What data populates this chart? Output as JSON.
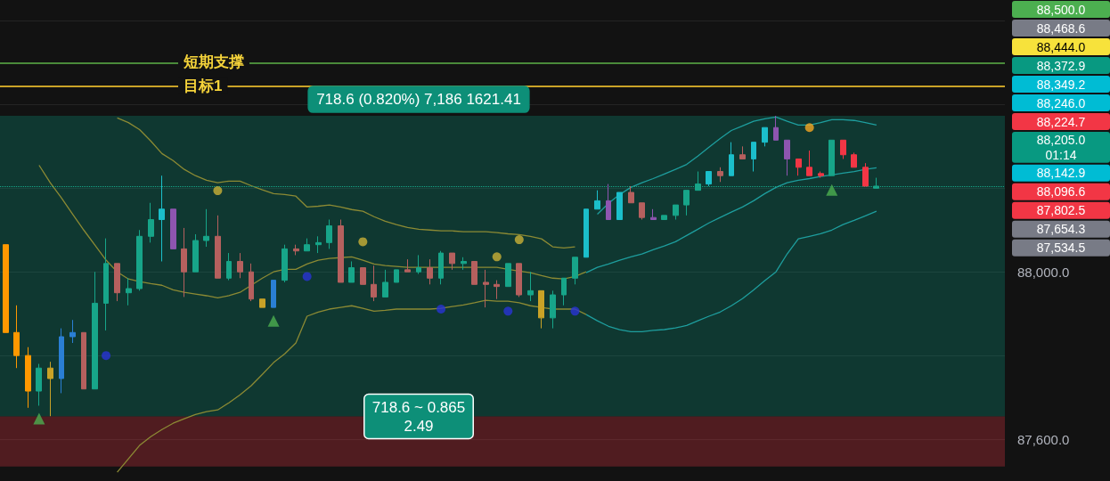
{
  "chart_data": {
    "type": "candlestick",
    "categories": [
      null,
      null,
      null,
      null,
      null,
      null,
      null,
      null,
      null,
      null,
      null,
      null,
      null,
      null,
      null,
      null,
      null,
      null,
      null,
      null,
      null,
      null,
      null,
      null,
      null,
      null,
      null,
      null,
      null,
      null,
      null,
      null,
      null,
      null,
      null,
      null,
      null,
      null,
      null,
      null,
      null,
      null,
      null,
      null,
      null,
      null,
      null,
      null,
      null,
      null,
      null,
      null,
      null,
      null,
      null,
      null,
      null,
      null,
      null,
      null,
      null,
      null,
      null,
      null,
      null,
      null,
      null,
      null,
      null,
      null,
      null,
      null,
      null,
      null,
      null,
      null,
      null,
      null,
      null
    ],
    "ohlc": [
      [
        88065,
        88065,
        87855,
        87855
      ],
      [
        87855,
        87920,
        87770,
        87800
      ],
      [
        87800,
        87820,
        87675,
        87715
      ],
      [
        87715,
        87780,
        87680,
        87770
      ],
      [
        87770,
        87785,
        87655,
        87745
      ],
      [
        87745,
        87865,
        87710,
        87845
      ],
      [
        87845,
        87885,
        87830,
        87855
      ],
      [
        87855,
        87855,
        87720,
        87720
      ],
      [
        87720,
        88000,
        87720,
        87925
      ],
      [
        87925,
        88080,
        87860,
        88020
      ],
      [
        88020,
        88020,
        87930,
        87950
      ],
      [
        87950,
        87985,
        87920,
        87960
      ],
      [
        87960,
        88100,
        87955,
        88085
      ],
      [
        88085,
        88165,
        88070,
        88125
      ],
      [
        88125,
        88230,
        88025,
        88150
      ],
      [
        88150,
        88150,
        88055,
        88055
      ],
      [
        88055,
        88105,
        87940,
        88000
      ],
      [
        88000,
        88090,
        88000,
        88075
      ],
      [
        88075,
        88150,
        88060,
        88085
      ],
      [
        88085,
        88135,
        87985,
        87985
      ],
      [
        87985,
        88045,
        87980,
        88025
      ],
      [
        88025,
        88045,
        87985,
        88000
      ],
      [
        88000,
        88020,
        87930,
        87935
      ],
      [
        87935,
        87935,
        87915,
        87915
      ],
      [
        87915,
        87980,
        87915,
        87980
      ],
      [
        87980,
        88065,
        87975,
        88055
      ],
      [
        88055,
        88065,
        88040,
        88050
      ],
      [
        88050,
        88080,
        88050,
        88065
      ],
      [
        88065,
        88085,
        88045,
        88070
      ],
      [
        88070,
        88125,
        88055,
        88110
      ],
      [
        88110,
        88125,
        87975,
        87975
      ],
      [
        87975,
        88025,
        87975,
        88010
      ],
      [
        88010,
        88010,
        87970,
        87970
      ],
      [
        87970,
        88015,
        87930,
        87940
      ],
      [
        87940,
        88005,
        87940,
        87975
      ],
      [
        87975,
        88005,
        87975,
        88005
      ],
      [
        88005,
        88030,
        88000,
        88000
      ],
      [
        88000,
        88040,
        87995,
        88010
      ],
      [
        88010,
        88030,
        87970,
        87985
      ],
      [
        87985,
        88050,
        87970,
        88045
      ],
      [
        88045,
        88045,
        88005,
        88020
      ],
      [
        88020,
        88035,
        88005,
        88025
      ],
      [
        88025,
        88025,
        87970,
        87970
      ],
      [
        87975,
        88005,
        87915,
        87970
      ],
      [
        87970,
        87980,
        87935,
        87965
      ],
      [
        87965,
        88020,
        87965,
        88020
      ],
      [
        88020,
        88020,
        87940,
        87945
      ],
      [
        87945,
        88000,
        87930,
        87955
      ],
      [
        87955,
        87955,
        87865,
        87890
      ],
      [
        87890,
        87955,
        87865,
        87945
      ],
      [
        87945,
        87985,
        87920,
        87985
      ],
      [
        87985,
        88035,
        87970,
        88035
      ],
      [
        88035,
        88150,
        88035,
        88150
      ],
      [
        88150,
        88195,
        88150,
        88170
      ],
      [
        88170,
        88210,
        88125,
        88125
      ],
      [
        88125,
        88190,
        88125,
        88190
      ],
      [
        88190,
        88205,
        88165,
        88165
      ],
      [
        88165,
        88165,
        88125,
        88130
      ],
      [
        88130,
        88150,
        88125,
        88125
      ],
      [
        88125,
        88135,
        88125,
        88135
      ],
      [
        88135,
        88160,
        88125,
        88160
      ],
      [
        88160,
        88195,
        88135,
        88195
      ],
      [
        88195,
        88240,
        88195,
        88210
      ],
      [
        88210,
        88240,
        88205,
        88240
      ],
      [
        88240,
        88250,
        88215,
        88230
      ],
      [
        88230,
        88310,
        88230,
        88280
      ],
      [
        88280,
        88300,
        88270,
        88270
      ],
      [
        88270,
        88310,
        88240,
        88310
      ],
      [
        88310,
        88345,
        88300,
        88345
      ],
      [
        88345,
        88373,
        88315,
        88315
      ],
      [
        88315,
        88315,
        88230,
        88270
      ],
      [
        88270,
        88270,
        88230,
        88250
      ],
      [
        88250,
        88290,
        88230,
        88230
      ],
      [
        88235,
        88240,
        88225,
        88230
      ],
      [
        88230,
        88315,
        88230,
        88315
      ],
      [
        88315,
        88315,
        88270,
        88280
      ],
      [
        88280,
        88285,
        88250,
        88250
      ],
      [
        88250,
        88260,
        88205,
        88205
      ],
      [
        88200,
        88225,
        88200,
        88205
      ]
    ],
    "colors": [
      "#ff9800",
      "#ff9800",
      "#ff9800",
      "#17a589",
      "#c9a227",
      "#2a7fd4",
      "#2a7fd4",
      "#b5605e",
      "#17a589",
      "#17a589",
      "#b5605e",
      "#17a589",
      "#17a589",
      "#17a589",
      "#1bbfcb",
      "#8e55b0",
      "#b5605e",
      "#17a589",
      "#17a589",
      "#b5605e",
      "#17a589",
      "#b5605e",
      "#b5605e",
      "#c9a227",
      "#2a7fd4",
      "#17a589",
      "#b5605e",
      "#17a589",
      "#17a589",
      "#17a589",
      "#b5605e",
      "#17a589",
      "#b5605e",
      "#b5605e",
      "#17a589",
      "#17a589",
      "#b5605e",
      "#17a589",
      "#b5605e",
      "#17a589",
      "#b5605e",
      "#17a589",
      "#b5605e",
      "#b5605e",
      "#b5605e",
      "#17a589",
      "#b5605e",
      "#17a589",
      "#c9a227",
      "#17a589",
      "#17a589",
      "#17a589",
      "#1bbfcb",
      "#1bbfcb",
      "#8e55b0",
      "#1bbfcb",
      "#b5605e",
      "#b5605e",
      "#8e55b0",
      "#17a589",
      "#17a589",
      "#17a589",
      "#17a589",
      "#1bbfcb",
      "#b5605e",
      "#1bbfcb",
      "#b5605e",
      "#1bbfcb",
      "#1bbfcb",
      "#8e55b0",
      "#8e55b0",
      "#f23645",
      "#f23645",
      "#f23645",
      "#17a589",
      "#f23645",
      "#f23645",
      "#f23645",
      "#17a589"
    ],
    "series": [
      {
        "type": "line",
        "color": "#8c8a34",
        "values": [
          null,
          null,
          null,
          null,
          null,
          null,
          null,
          null,
          null,
          null,
          88368,
          88357,
          88340,
          88313,
          88283,
          88266,
          88245,
          88230,
          88219,
          88213,
          88217,
          88217,
          88206,
          88196,
          88187,
          88185,
          88181,
          88155,
          88157,
          88160,
          88155,
          88149,
          88145,
          88132,
          88121,
          88113,
          88106,
          88102,
          88100,
          88098,
          88098,
          88096,
          88096,
          88096,
          88094,
          88091,
          88089,
          88085,
          88079,
          88060,
          88057,
          88060,
          null,
          null,
          null,
          null,
          null,
          null,
          null,
          null,
          null,
          null,
          null,
          null,
          null,
          null,
          null,
          null,
          null,
          null,
          null,
          null,
          null,
          null,
          null,
          null,
          null,
          null,
          null
        ]
      },
      {
        "type": "line",
        "color": "#8c8a34",
        "values": [
          null,
          null,
          null,
          88255,
          88213,
          88177,
          88138,
          88100,
          88064,
          88028,
          88000,
          87983,
          87977,
          87972,
          87968,
          87957,
          87951,
          87947,
          87943,
          87938,
          87943,
          87951,
          87968,
          87985,
          88000,
          88006,
          88006,
          88019,
          88028,
          88032,
          88034,
          88036,
          88028,
          88019,
          88015,
          88013,
          88011,
          88011,
          88011,
          88011,
          88011,
          88011,
          88011,
          88011,
          88011,
          88006,
          88002,
          87998,
          87991,
          87985,
          87983,
          87989,
          88000,
          null,
          null,
          null,
          null,
          null,
          null,
          null,
          null,
          null,
          null,
          null,
          null,
          null,
          null,
          null,
          null,
          null,
          null,
          null,
          null,
          null,
          null,
          null,
          null,
          null,
          null
        ]
      },
      {
        "type": "line",
        "color": "#8c8a34",
        "values": [
          null,
          null,
          null,
          null,
          null,
          null,
          null,
          null,
          null,
          null,
          87521,
          87553,
          87585,
          87606,
          87623,
          87638,
          87649,
          87659,
          87666,
          87670,
          87687,
          87706,
          87728,
          87755,
          87783,
          87804,
          87830,
          87894,
          87904,
          87911,
          87915,
          87919,
          87913,
          87906,
          87908,
          87911,
          87911,
          87911,
          87911,
          87913,
          87917,
          87921,
          87926,
          87932,
          87930,
          87930,
          87926,
          87919,
          87915,
          87911,
          87911,
          87911,
          87898,
          null,
          null,
          null,
          null,
          null,
          null,
          null,
          null,
          null,
          null,
          null,
          null,
          null,
          null,
          null,
          null,
          null,
          null,
          null,
          null,
          null,
          null,
          null,
          null,
          null,
          null
        ]
      },
      {
        "type": "line",
        "color": "#1e9e9e",
        "values": [
          null,
          null,
          null,
          null,
          null,
          null,
          null,
          null,
          null,
          null,
          null,
          null,
          null,
          null,
          null,
          null,
          null,
          null,
          null,
          null,
          null,
          null,
          null,
          null,
          null,
          null,
          null,
          null,
          null,
          null,
          null,
          null,
          null,
          null,
          null,
          null,
          null,
          null,
          null,
          null,
          null,
          null,
          null,
          null,
          null,
          null,
          null,
          null,
          null,
          null,
          null,
          null,
          null,
          88138,
          88164,
          88185,
          88202,
          88213,
          88223,
          88234,
          88245,
          88257,
          88277,
          88298,
          88319,
          88338,
          88349,
          88360,
          88366,
          88370,
          88360,
          88351,
          88351,
          88357,
          88364,
          88364,
          88362,
          88357,
          88351
        ]
      },
      {
        "type": "line",
        "color": "#1e9e9e",
        "values": [
          null,
          null,
          null,
          null,
          null,
          null,
          null,
          null,
          null,
          null,
          null,
          null,
          null,
          null,
          null,
          null,
          null,
          null,
          null,
          null,
          null,
          null,
          null,
          null,
          null,
          null,
          null,
          null,
          null,
          null,
          null,
          null,
          null,
          null,
          null,
          null,
          null,
          null,
          null,
          null,
          null,
          null,
          null,
          null,
          null,
          null,
          null,
          null,
          null,
          null,
          null,
          null,
          87998,
          88011,
          88019,
          88028,
          88036,
          88043,
          88053,
          88062,
          88072,
          88087,
          88102,
          88117,
          88130,
          88143,
          88155,
          88170,
          88187,
          88202,
          88213,
          88219,
          88223,
          88228,
          88232,
          88236,
          88240,
          88245,
          88249
        ]
      },
      {
        "type": "line",
        "color": "#1e9e9e",
        "values": [
          null,
          null,
          null,
          null,
          null,
          null,
          null,
          null,
          null,
          null,
          null,
          null,
          null,
          null,
          null,
          null,
          null,
          null,
          null,
          null,
          null,
          null,
          null,
          null,
          null,
          null,
          null,
          null,
          null,
          null,
          null,
          null,
          null,
          null,
          null,
          null,
          null,
          null,
          null,
          null,
          null,
          null,
          null,
          null,
          null,
          null,
          null,
          null,
          null,
          null,
          null,
          null,
          87898,
          87883,
          87870,
          87862,
          87857,
          87857,
          87860,
          87862,
          87866,
          87872,
          87883,
          87894,
          87904,
          87919,
          87936,
          87957,
          87979,
          88000,
          88043,
          88079,
          88085,
          88091,
          88100,
          88113,
          88123,
          88134,
          88145
        ]
      },
      {
        "type": "scatter",
        "marker": "circle",
        "color": "#c9b037",
        "values": [
          null,
          null,
          null,
          null,
          null,
          null,
          null,
          null,
          null,
          null,
          null,
          null,
          null,
          null,
          null,
          null,
          null,
          null,
          null,
          88194,
          null,
          null,
          null,
          null,
          null,
          null,
          null,
          null,
          null,
          null,
          null,
          null,
          88072,
          null,
          null,
          null,
          null,
          null,
          null,
          null,
          null,
          null,
          null,
          null,
          88036,
          null,
          88077,
          null,
          null,
          null,
          null,
          null,
          null,
          null,
          null,
          null,
          null,
          null,
          null,
          null,
          null,
          null,
          null,
          null,
          null,
          null,
          null,
          null,
          null,
          null,
          null,
          null,
          null,
          null,
          null,
          null,
          null,
          null,
          null
        ]
      },
      {
        "type": "scatter",
        "marker": "circle",
        "color": "#2833d6",
        "values": [
          null,
          null,
          null,
          null,
          null,
          null,
          null,
          null,
          null,
          87800,
          null,
          null,
          null,
          null,
          null,
          null,
          null,
          null,
          null,
          null,
          null,
          null,
          null,
          null,
          null,
          null,
          null,
          87989,
          null,
          null,
          null,
          null,
          null,
          null,
          null,
          null,
          null,
          null,
          null,
          87911,
          null,
          null,
          null,
          null,
          null,
          87906,
          null,
          null,
          null,
          null,
          null,
          87906,
          null,
          null,
          null,
          null,
          null,
          null,
          null,
          null,
          null,
          null,
          null,
          null,
          null,
          null,
          null,
          null,
          null,
          null,
          null,
          null,
          null,
          null,
          null,
          null,
          null,
          null,
          null
        ]
      },
      {
        "type": "scatter",
        "marker": "circle",
        "color": "#f5a623",
        "values": [
          null,
          null,
          null,
          null,
          null,
          null,
          null,
          null,
          null,
          null,
          null,
          null,
          null,
          null,
          null,
          null,
          null,
          null,
          null,
          null,
          null,
          null,
          null,
          null,
          null,
          null,
          null,
          null,
          null,
          null,
          null,
          null,
          null,
          null,
          null,
          null,
          null,
          null,
          null,
          null,
          null,
          null,
          null,
          null,
          null,
          null,
          null,
          null,
          null,
          null,
          null,
          null,
          null,
          null,
          null,
          null,
          null,
          null,
          null,
          null,
          null,
          null,
          null,
          null,
          null,
          null,
          null,
          null,
          null,
          null,
          null,
          null,
          88345,
          null,
          null,
          null,
          null,
          null,
          null
        ]
      },
      {
        "type": "scatter",
        "marker": "triangle",
        "color": "#4caf50",
        "values": [
          null,
          null,
          null,
          87649,
          null,
          null,
          null,
          null,
          null,
          null,
          null,
          null,
          null,
          null,
          null,
          null,
          null,
          null,
          null,
          null,
          null,
          null,
          null,
          null,
          87883,
          null,
          null,
          null,
          null,
          null,
          null,
          null,
          null,
          null,
          null,
          null,
          null,
          null,
          null,
          null,
          null,
          null,
          null,
          null,
          null,
          null,
          null,
          null,
          null,
          null,
          null,
          null,
          null,
          null,
          null,
          null,
          null,
          null,
          null,
          null,
          null,
          null,
          null,
          null,
          null,
          null,
          null,
          null,
          null,
          null,
          null,
          null,
          null,
          null,
          88196,
          null,
          null,
          null,
          null
        ]
      }
    ],
    "ylim": [
      87500,
      88650
    ],
    "yticks": [
      {
        "value": 87600,
        "label": "87,600.0"
      },
      {
        "value": 87800,
        "label": null
      },
      {
        "value": 88000,
        "label": "88,000.0"
      },
      {
        "value": 88200,
        "label": null
      },
      {
        "value": 88400,
        "label": null
      },
      {
        "value": 88600,
        "label": null
      }
    ],
    "grid": "y",
    "ref_lines": [
      {
        "axis": "y",
        "value": 88500,
        "label": "短期支撑",
        "color": "#4a8a3a"
      },
      {
        "axis": "y",
        "value": 88444,
        "label": "目标1",
        "color": "#c9a227"
      },
      {
        "axis": "y",
        "value": 88205,
        "label": null,
        "color": "#17a589",
        "line_style": "dotted"
      }
    ],
    "bands": [
      {
        "axis": "y",
        "from": 87654.3,
        "to": 88372.9,
        "color": "#089981"
      },
      {
        "axis": "y",
        "from": 87534.5,
        "to": 87654.3,
        "color": "#f23645"
      }
    ],
    "annotations": [
      "718.6 (0.820%) 7,186 1621.41",
      "718.6 ~ 0.865\n2.49",
      "88,500.0",
      "88,468.6",
      "88,444.0",
      "88,372.9",
      "88,349.2",
      "88,246.0",
      "88,224.7",
      "88,205.0\n01:14",
      "88,142.9",
      "88,096.6",
      "87,802.5",
      "87,654.3",
      "87,534.5"
    ]
  }
}
